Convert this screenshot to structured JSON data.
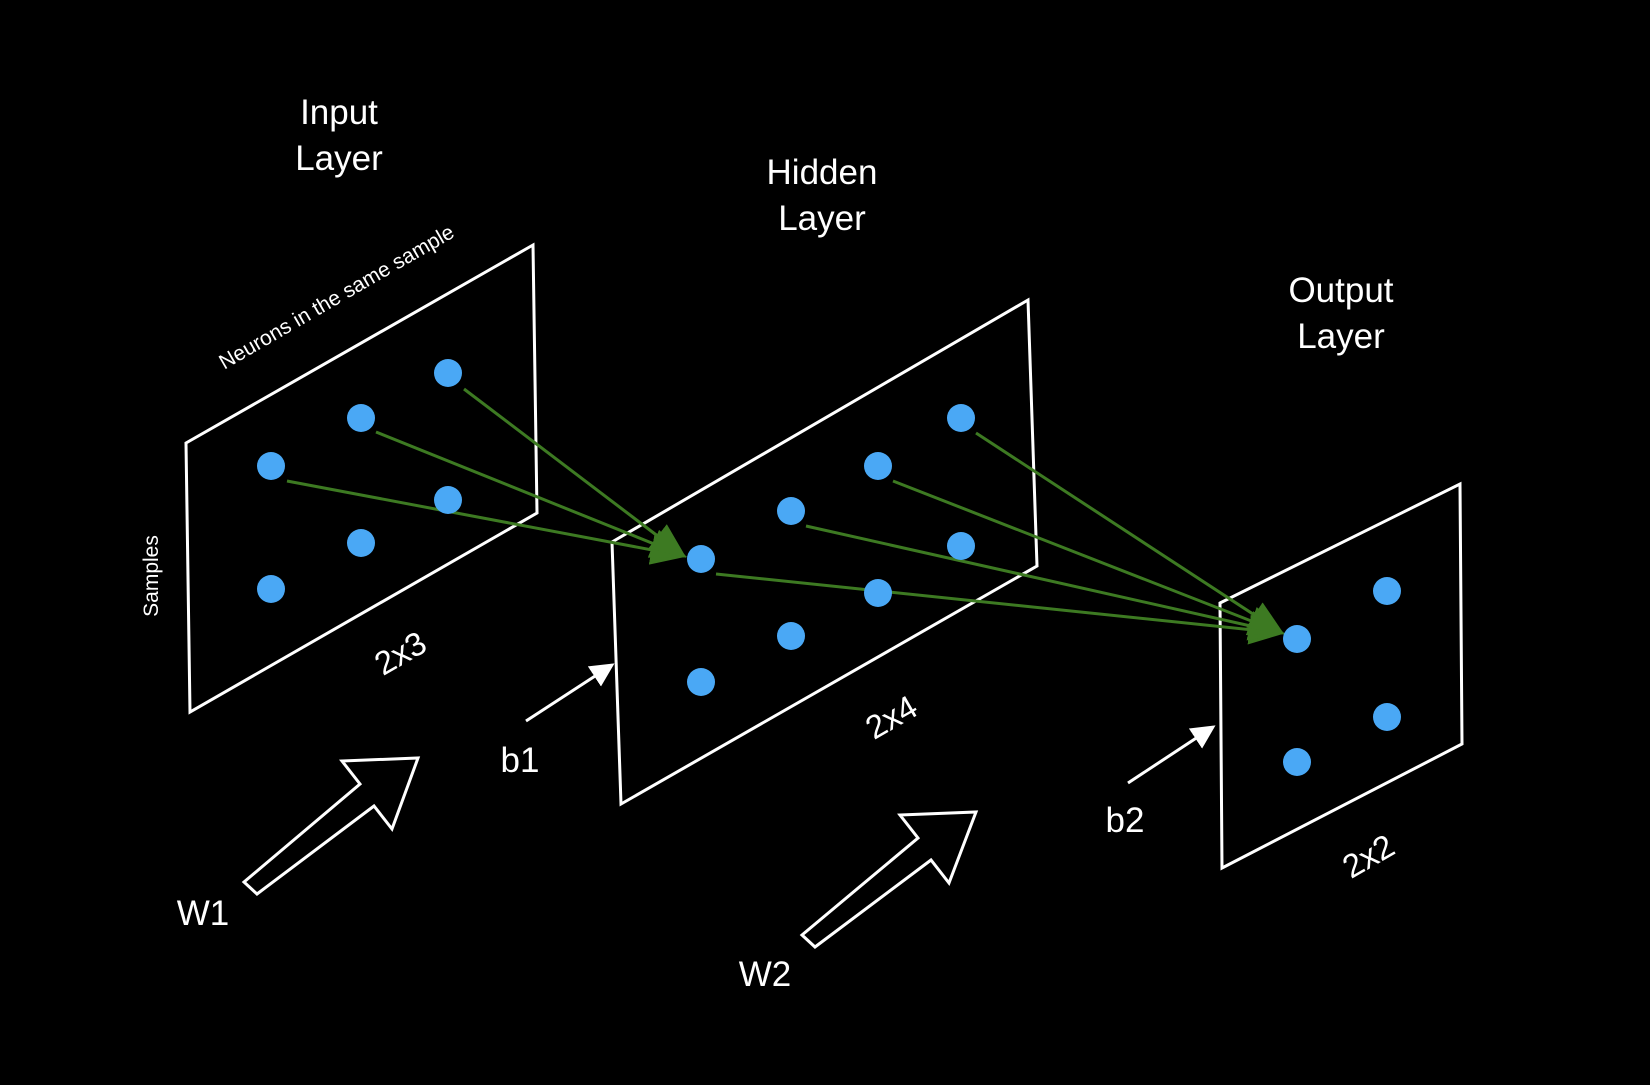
{
  "colors": {
    "background": "#000000",
    "neuron": "#4aa8f5",
    "connection": "#3d7a22",
    "outline": "#ffffff",
    "text": "#ffffff"
  },
  "layers": {
    "input": {
      "title_line1": "Input",
      "title_line2": "Layer",
      "shape": "2x3",
      "axis_columns_label": "Neurons in the same sample",
      "axis_rows_label": "Samples",
      "neuron_count": 6
    },
    "hidden": {
      "title_line1": "Hidden",
      "title_line2": "Layer",
      "shape": "2x4",
      "neuron_count": 8
    },
    "output": {
      "title_line1": "Output",
      "title_line2": "Layer",
      "shape": "2x2",
      "neuron_count": 4
    }
  },
  "parameters": {
    "w1": "W1",
    "b1": "b1",
    "w2": "W2",
    "b2": "b2"
  }
}
